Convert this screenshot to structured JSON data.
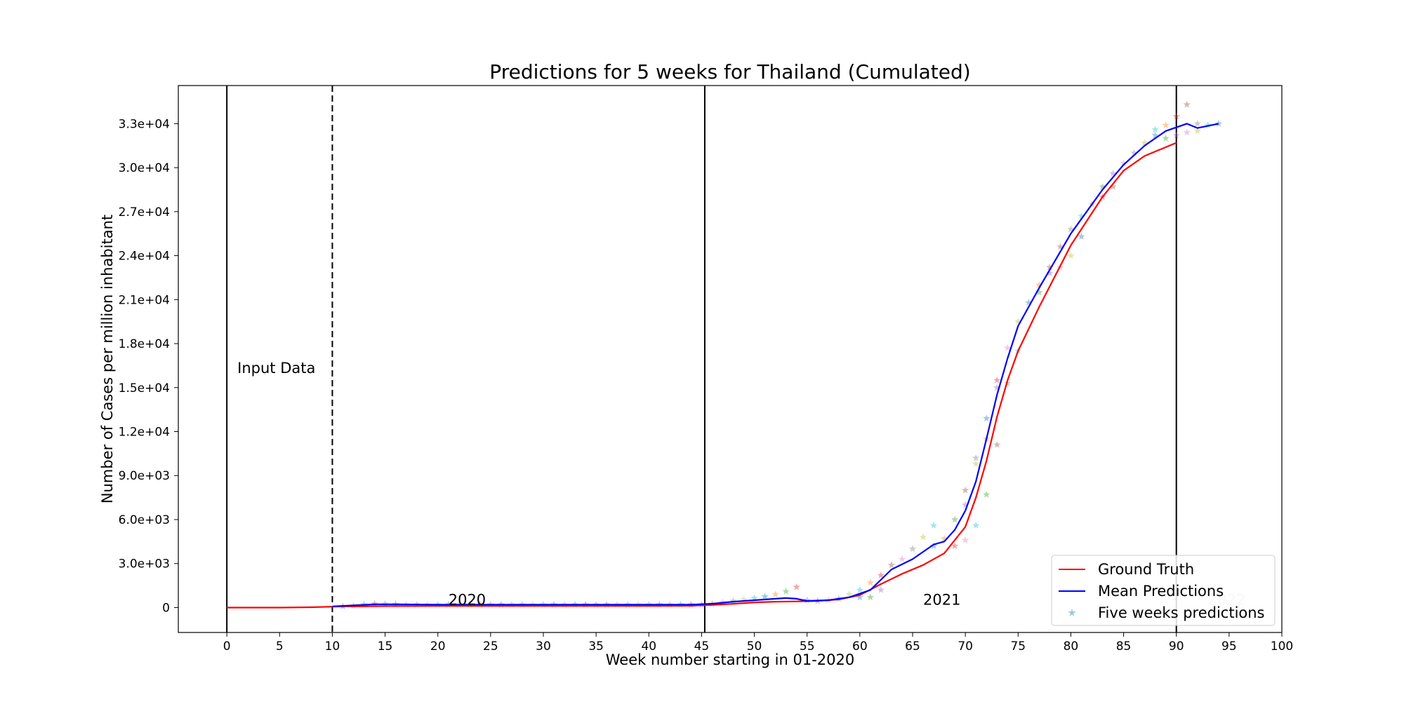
{
  "chart_data": {
    "type": "line",
    "title": "Predictions for 5 weeks for Thailand (Cumulated)",
    "xlabel": "Week number starting in 01-2020",
    "ylabel": "Number of Cases per million inhabitant",
    "xlim": [
      -4.6,
      100
    ],
    "ylim": [
      -1700,
      35600
    ],
    "xticks": [
      0,
      5,
      10,
      15,
      20,
      25,
      30,
      35,
      40,
      45,
      50,
      55,
      60,
      65,
      70,
      75,
      80,
      85,
      90,
      95,
      100
    ],
    "xtick_labels": [
      "0",
      "5",
      "10",
      "15",
      "20",
      "25",
      "30",
      "35",
      "40",
      "45",
      "50",
      "55",
      "60",
      "65",
      "70",
      "75",
      "80",
      "85",
      "90",
      "95",
      "100"
    ],
    "yticks": [
      0,
      3000,
      6000,
      9000,
      12000,
      15000,
      18000,
      21000,
      24000,
      27000,
      30000,
      33000
    ],
    "ytick_labels": [
      "0",
      "3.0e+03",
      "6.0e+03",
      "9.0e+03",
      "1.2e+04",
      "1.5e+04",
      "1.8e+04",
      "2.1e+04",
      "2.4e+04",
      "2.7e+04",
      "3.0e+04",
      "3.3e+04"
    ],
    "grid": false,
    "legend_position": "lower-right",
    "vlines": [
      {
        "x": 0,
        "style": "solid"
      },
      {
        "x": 10,
        "style": "dashed"
      },
      {
        "x": 45.3,
        "style": "solid"
      },
      {
        "x": 90,
        "style": "solid"
      }
    ],
    "annotations": [
      {
        "text": "Input Data",
        "x": 1,
        "y": 16000,
        "color": "#000000"
      },
      {
        "text": "2020",
        "x": 21,
        "y": 200,
        "color": "#000000"
      },
      {
        "text": "2021",
        "x": 66,
        "y": 200,
        "color": "#000000"
      },
      {
        "text": "2022",
        "x": 93,
        "y": 200,
        "color": "#c8c8c8"
      }
    ],
    "series": [
      {
        "name": "Ground Truth",
        "color": "#ff0000",
        "kind": "line",
        "points": [
          [
            0,
            0
          ],
          [
            5,
            0
          ],
          [
            8,
            20
          ],
          [
            10,
            60
          ],
          [
            12,
            80
          ],
          [
            15,
            100
          ],
          [
            20,
            110
          ],
          [
            25,
            110
          ],
          [
            30,
            110
          ],
          [
            35,
            110
          ],
          [
            40,
            110
          ],
          [
            44,
            120
          ],
          [
            46,
            180
          ],
          [
            48,
            250
          ],
          [
            50,
            350
          ],
          [
            52,
            400
          ],
          [
            54,
            420
          ],
          [
            56,
            450
          ],
          [
            58,
            550
          ],
          [
            60,
            850
          ],
          [
            62,
            1600
          ],
          [
            64,
            2300
          ],
          [
            66,
            2900
          ],
          [
            68,
            3700
          ],
          [
            70,
            5500
          ],
          [
            71,
            7500
          ],
          [
            72,
            10000
          ],
          [
            73,
            13000
          ],
          [
            74,
            15500
          ],
          [
            75,
            17500
          ],
          [
            77,
            20500
          ],
          [
            80,
            24700
          ],
          [
            83,
            28000
          ],
          [
            85,
            29800
          ],
          [
            87,
            30800
          ],
          [
            90,
            31700
          ]
        ]
      },
      {
        "name": "Mean Predictions",
        "color": "#0000ff",
        "kind": "line",
        "points": [
          [
            10,
            80
          ],
          [
            12,
            150
          ],
          [
            14,
            220
          ],
          [
            16,
            220
          ],
          [
            20,
            200
          ],
          [
            25,
            200
          ],
          [
            30,
            200
          ],
          [
            35,
            200
          ],
          [
            40,
            200
          ],
          [
            44,
            200
          ],
          [
            46,
            260
          ],
          [
            48,
            400
          ],
          [
            50,
            500
          ],
          [
            52,
            600
          ],
          [
            53,
            650
          ],
          [
            54,
            600
          ],
          [
            55,
            450
          ],
          [
            57,
            500
          ],
          [
            59,
            700
          ],
          [
            61,
            1200
          ],
          [
            63,
            2600
          ],
          [
            65,
            3300
          ],
          [
            67,
            4300
          ],
          [
            68,
            4500
          ],
          [
            69,
            5300
          ],
          [
            70,
            6600
          ],
          [
            71,
            8600
          ],
          [
            72,
            11500
          ],
          [
            73,
            14500
          ],
          [
            74,
            17000
          ],
          [
            75,
            19200
          ],
          [
            77,
            21800
          ],
          [
            80,
            25500
          ],
          [
            83,
            28500
          ],
          [
            85,
            30200
          ],
          [
            87,
            31500
          ],
          [
            89,
            32500
          ],
          [
            91,
            33000
          ],
          [
            92,
            32700
          ],
          [
            94,
            33000
          ]
        ]
      },
      {
        "name": "Five weeks predictions",
        "kind": "scatter",
        "marker": "star",
        "colors": [
          "#1f77b4",
          "#ff7f0e",
          "#2ca02c",
          "#d62728",
          "#9467bd",
          "#8c564b",
          "#e377c2",
          "#7f7f7f",
          "#bcbd22",
          "#17becf"
        ],
        "points": [
          [
            11,
            80
          ],
          [
            12,
            120
          ],
          [
            13,
            200
          ],
          [
            14,
            250
          ],
          [
            15,
            250
          ],
          [
            16,
            220
          ],
          [
            17,
            200
          ],
          [
            18,
            200
          ],
          [
            19,
            200
          ],
          [
            20,
            200
          ],
          [
            21,
            200
          ],
          [
            22,
            200
          ],
          [
            23,
            200
          ],
          [
            24,
            200
          ],
          [
            25,
            200
          ],
          [
            26,
            200
          ],
          [
            27,
            200
          ],
          [
            28,
            200
          ],
          [
            29,
            200
          ],
          [
            30,
            200
          ],
          [
            31,
            200
          ],
          [
            32,
            200
          ],
          [
            33,
            200
          ],
          [
            34,
            200
          ],
          [
            35,
            200
          ],
          [
            36,
            200
          ],
          [
            37,
            200
          ],
          [
            38,
            200
          ],
          [
            39,
            200
          ],
          [
            40,
            200
          ],
          [
            41,
            200
          ],
          [
            42,
            200
          ],
          [
            43,
            200
          ],
          [
            44,
            200
          ],
          [
            45,
            200
          ],
          [
            46,
            250
          ],
          [
            47,
            350
          ],
          [
            48,
            450
          ],
          [
            49,
            550
          ],
          [
            50,
            650
          ],
          [
            51,
            750
          ],
          [
            52,
            900
          ],
          [
            53,
            1100
          ],
          [
            54,
            1400
          ],
          [
            55,
            500
          ],
          [
            56,
            450
          ],
          [
            57,
            500
          ],
          [
            58,
            600
          ],
          [
            59,
            900
          ],
          [
            60,
            1200
          ],
          [
            60,
            700
          ],
          [
            61,
            1700
          ],
          [
            61,
            700
          ],
          [
            62,
            2200
          ],
          [
            62,
            1200
          ],
          [
            63,
            2900
          ],
          [
            64,
            3300
          ],
          [
            65,
            4000
          ],
          [
            66,
            4800
          ],
          [
            67,
            5600
          ],
          [
            67,
            4200
          ],
          [
            68,
            4700
          ],
          [
            69,
            6000
          ],
          [
            69,
            4200
          ],
          [
            70,
            7000
          ],
          [
            70,
            8000
          ],
          [
            70,
            4600
          ],
          [
            71,
            10200
          ],
          [
            71,
            9800
          ],
          [
            71,
            5600
          ],
          [
            72,
            12900
          ],
          [
            72,
            11500
          ],
          [
            72,
            7700
          ],
          [
            73,
            15500
          ],
          [
            73,
            15000
          ],
          [
            73,
            11100
          ],
          [
            74,
            17700
          ],
          [
            74,
            15300
          ],
          [
            75,
            19500
          ],
          [
            75,
            17500
          ],
          [
            76,
            20800
          ],
          [
            77,
            22000
          ],
          [
            77,
            21500
          ],
          [
            78,
            23200
          ],
          [
            78,
            22800
          ],
          [
            79,
            24600
          ],
          [
            79,
            23200
          ],
          [
            80,
            25800
          ],
          [
            80,
            24000
          ],
          [
            81,
            26700
          ],
          [
            81,
            25300
          ],
          [
            82,
            27500
          ],
          [
            83,
            28700
          ],
          [
            83,
            28000
          ],
          [
            84,
            29600
          ],
          [
            84,
            28700
          ],
          [
            85,
            30300
          ],
          [
            86,
            31000
          ],
          [
            87,
            31700
          ],
          [
            88,
            32600
          ],
          [
            88,
            32200
          ],
          [
            89,
            32900
          ],
          [
            89,
            32000
          ],
          [
            90,
            33500
          ],
          [
            90,
            32200
          ],
          [
            91,
            34300
          ],
          [
            91,
            32400
          ],
          [
            92,
            33000
          ],
          [
            92,
            32500
          ],
          [
            93,
            32900
          ],
          [
            94,
            33000
          ]
        ]
      }
    ]
  }
}
